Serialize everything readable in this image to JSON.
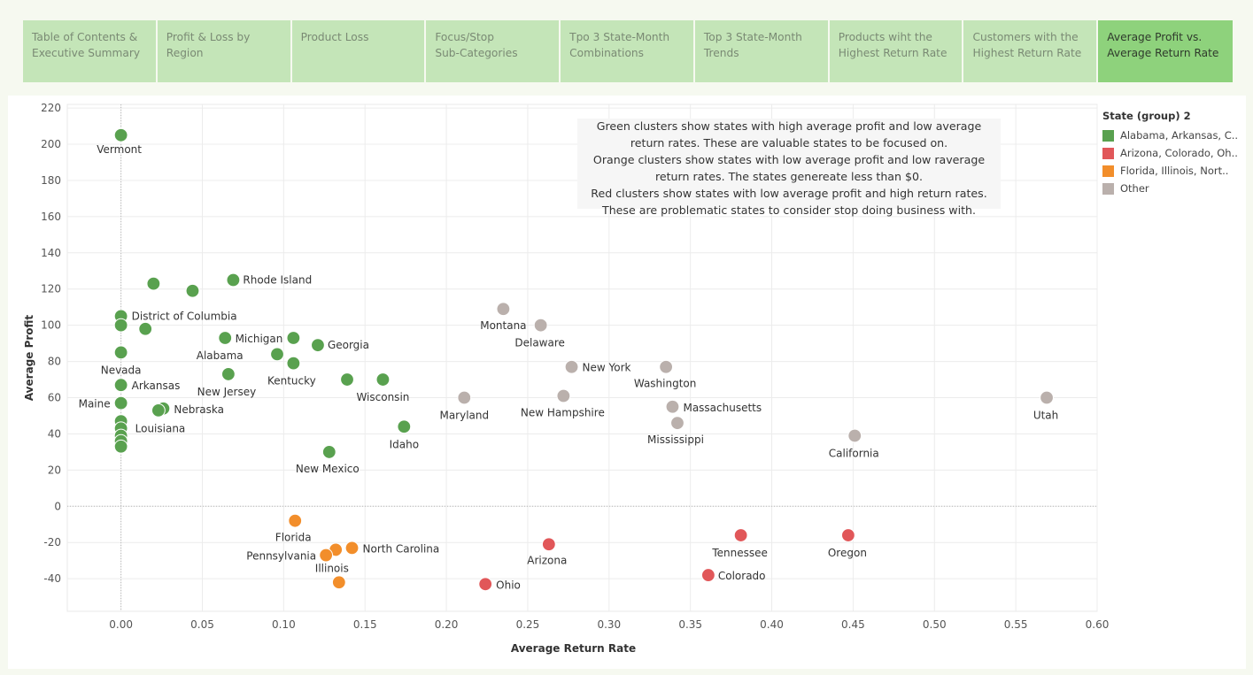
{
  "tabs": [
    {
      "label": "Table of Contents &\nExecutive Summary",
      "active": false
    },
    {
      "label": "Profit & Loss by Region",
      "active": false
    },
    {
      "label": "Product Loss",
      "active": false
    },
    {
      "label": "Focus/Stop\nSub-Categories",
      "active": false
    },
    {
      "label": "Tpo 3 State-Month\nCombinations",
      "active": false
    },
    {
      "label": "Top 3 State-Month\nTrends",
      "active": false
    },
    {
      "label": "Products wiht the\nHighest Return Rate",
      "active": false
    },
    {
      "label": "Customers with the\nHighest Return Rate",
      "active": false
    },
    {
      "label": "Average Profit vs.\nAverage Return Rate",
      "active": true
    }
  ],
  "annotation": [
    "Green clusters show states with high average profit and low average",
    "return rates. These are valuable states to be focused on.",
    "Orange clusters show states with low average profit and low raverage",
    "return rates. The states genereate less than $0.",
    "Red clusters show states with low average profit and high return rates.",
    "These are problematic states to consider stop doing business with."
  ],
  "legend": {
    "title": "State (group) 2",
    "items": [
      {
        "label": "Alabama, Arkansas, C..",
        "color": "#59a14f"
      },
      {
        "label": "Arizona, Colorado, Oh..",
        "color": "#e15759"
      },
      {
        "label": "Florida, Illinois, Nort..",
        "color": "#f28e2b"
      },
      {
        "label": "Other",
        "color": "#bab0ac"
      }
    ]
  },
  "chart_data": {
    "type": "scatter",
    "xlabel": "Average Return Rate",
    "ylabel": "Average Profit",
    "xlim": [
      -0.033,
      0.6
    ],
    "ylim": [
      -58,
      222
    ],
    "xticks": [
      "0.00",
      "0.05",
      "0.10",
      "0.15",
      "0.20",
      "0.25",
      "0.30",
      "0.35",
      "0.40",
      "0.45",
      "0.50",
      "0.55",
      "0.60"
    ],
    "yticks": [
      "220",
      "200",
      "180",
      "160",
      "140",
      "120",
      "100",
      "80",
      "60",
      "40",
      "20",
      "0",
      "-20",
      "-40"
    ],
    "grid": true,
    "legend_position": "right",
    "series": [
      {
        "group": "Alabama, Arkansas, C..",
        "color": "#59a14f",
        "points": [
          {
            "state": "Vermont",
            "x": 0.0,
            "y": 205
          },
          {
            "state": "",
            "x": 0.02,
            "y": 123
          },
          {
            "state": "",
            "x": 0.044,
            "y": 119
          },
          {
            "state": "Rhode Island",
            "x": 0.069,
            "y": 125
          },
          {
            "state": "District of Columbia",
            "x": 0.0,
            "y": 105
          },
          {
            "state": "",
            "x": 0.0,
            "y": 100
          },
          {
            "state": "",
            "x": 0.015,
            "y": 98
          },
          {
            "state": "Nevada",
            "x": 0.0,
            "y": 85
          },
          {
            "state": "Alabama",
            "x": 0.064,
            "y": 93
          },
          {
            "state": "Michigan",
            "x": 0.106,
            "y": 93
          },
          {
            "state": "Georgia",
            "x": 0.121,
            "y": 89
          },
          {
            "state": "",
            "x": 0.096,
            "y": 84
          },
          {
            "state": "Kentucky",
            "x": 0.106,
            "y": 79
          },
          {
            "state": "New Jersey",
            "x": 0.066,
            "y": 73
          },
          {
            "state": "Arkansas",
            "x": 0.0,
            "y": 67
          },
          {
            "state": "",
            "x": 0.139,
            "y": 70
          },
          {
            "state": "Wisconsin",
            "x": 0.161,
            "y": 70
          },
          {
            "state": "Maine",
            "x": 0.0,
            "y": 57
          },
          {
            "state": "Nebraska",
            "x": 0.026,
            "y": 54
          },
          {
            "state": "",
            "x": 0.023,
            "y": 53
          },
          {
            "state": "",
            "x": 0.0,
            "y": 47
          },
          {
            "state": "Louisiana",
            "x": 0.0,
            "y": 43
          },
          {
            "state": "",
            "x": 0.0,
            "y": 39
          },
          {
            "state": "",
            "x": 0.0,
            "y": 36
          },
          {
            "state": "",
            "x": 0.0,
            "y": 33
          },
          {
            "state": "Idaho",
            "x": 0.174,
            "y": 44
          },
          {
            "state": "New Mexico",
            "x": 0.128,
            "y": 30
          }
        ]
      },
      {
        "group": "Arizona, Colorado, Oh..",
        "color": "#e15759",
        "points": [
          {
            "state": "Arizona",
            "x": 0.263,
            "y": -21
          },
          {
            "state": "Tennessee",
            "x": 0.381,
            "y": -16
          },
          {
            "state": "Oregon",
            "x": 0.447,
            "y": -16
          },
          {
            "state": "Colorado",
            "x": 0.361,
            "y": -38
          },
          {
            "state": "Ohio",
            "x": 0.224,
            "y": -43
          }
        ]
      },
      {
        "group": "Florida, Illinois, Nort..",
        "color": "#f28e2b",
        "points": [
          {
            "state": "Florida",
            "x": 0.107,
            "y": -8
          },
          {
            "state": "North Carolina",
            "x": 0.142,
            "y": -23
          },
          {
            "state": "",
            "x": 0.132,
            "y": -24
          },
          {
            "state": "Pennsylvania",
            "x": 0.126,
            "y": -27
          },
          {
            "state": "Illinois",
            "x": 0.134,
            "y": -42
          }
        ]
      },
      {
        "group": "Other",
        "color": "#bab0ac",
        "points": [
          {
            "state": "Montana",
            "x": 0.235,
            "y": 109
          },
          {
            "state": "Delaware",
            "x": 0.258,
            "y": 100
          },
          {
            "state": "New York",
            "x": 0.277,
            "y": 77
          },
          {
            "state": "Washington",
            "x": 0.335,
            "y": 77
          },
          {
            "state": "Maryland",
            "x": 0.211,
            "y": 60
          },
          {
            "state": "New Hampshire",
            "x": 0.272,
            "y": 61
          },
          {
            "state": "Massachusetts",
            "x": 0.339,
            "y": 55
          },
          {
            "state": "Mississippi",
            "x": 0.342,
            "y": 46
          },
          {
            "state": "California",
            "x": 0.451,
            "y": 39
          },
          {
            "state": "Utah",
            "x": 0.569,
            "y": 60
          }
        ]
      }
    ]
  }
}
